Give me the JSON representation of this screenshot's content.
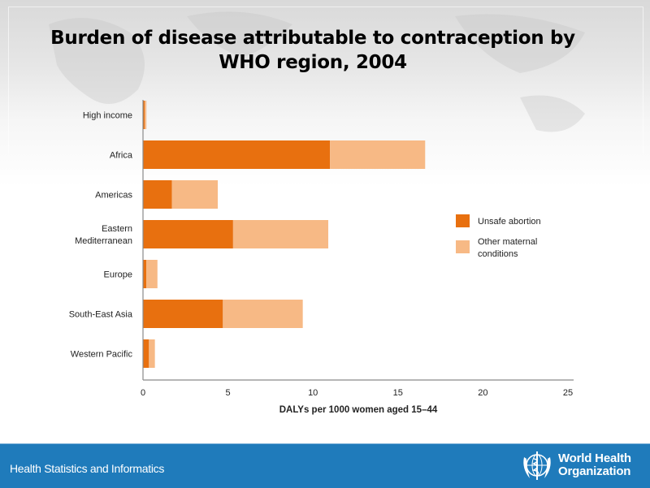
{
  "slide": {
    "title_line1": "Burden of disease attributable to contraception by",
    "title_line2": "WHO region, 2004"
  },
  "footer": {
    "left_text": "Health Statistics and Informatics",
    "org_line1": "World Health",
    "org_line2": "Organization",
    "logo_icon": "who-emblem-icon"
  },
  "chart_data": {
    "type": "bar",
    "orientation": "horizontal",
    "stacked": true,
    "title": "Burden of disease attributable to contraception by WHO region, 2004",
    "xlabel": "DALYs per 1000 women aged 15–44",
    "ylabel": "",
    "xlim": [
      0,
      25
    ],
    "xticks": [
      0,
      5,
      10,
      15,
      20,
      25
    ],
    "grid": false,
    "legend_position": "right",
    "categories": [
      "High income",
      "Africa",
      "Americas",
      "Eastern Mediterranean",
      "Europe",
      "South-East Asia",
      "Western Pacific"
    ],
    "category_labels": [
      [
        "High income"
      ],
      [
        "Africa"
      ],
      [
        "Americas"
      ],
      [
        "Eastern",
        "Mediterranean"
      ],
      [
        "Europe"
      ],
      [
        "South-East Asia"
      ],
      [
        "Western Pacific"
      ]
    ],
    "series": [
      {
        "name": "Unsafe abortion",
        "legend_lines": [
          "Unsafe abortion"
        ],
        "color": "#e8700f",
        "values": [
          0.1,
          11.0,
          1.7,
          5.3,
          0.2,
          4.7,
          0.35
        ]
      },
      {
        "name": "Other maternal conditions",
        "legend_lines": [
          "Other maternal",
          "conditions"
        ],
        "color": "#f7b985",
        "values": [
          0.1,
          5.6,
          2.7,
          5.6,
          0.65,
          4.7,
          0.35
        ]
      }
    ]
  }
}
